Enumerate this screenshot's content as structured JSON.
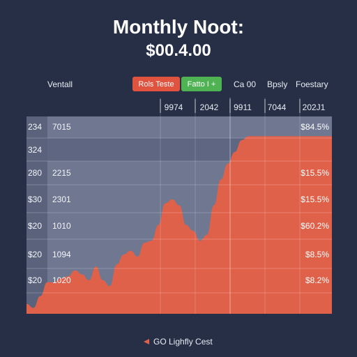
{
  "header": {
    "title": "Monthly Noot:",
    "subtitle": "$00.4.00"
  },
  "toolbar": {
    "left_label": "Ventall",
    "chip_red_label": "Rols Teste",
    "chip_green_label": "Fatto I +",
    "item_1": "Ca 00",
    "item_2": "Bpsly",
    "item_3": "Foestary"
  },
  "colors": {
    "background": "#262f45",
    "area": "#e0614a",
    "panel": "#6f7791",
    "chip_red": "#e0533f",
    "chip_green": "#4fb354"
  },
  "columns": [
    "9974",
    "2042",
    "9911",
    "7044",
    "202J1"
  ],
  "rows": [
    {
      "label": "234",
      "value": "7015",
      "pct": "$84.5%"
    },
    {
      "label": "324",
      "value": "",
      "pct": ""
    },
    {
      "label": "280",
      "value": "2215",
      "pct": "$15.5%"
    },
    {
      "label": "$30",
      "value": "2301",
      "pct": "$15.5%"
    },
    {
      "label": "$20",
      "value": "1010",
      "pct": "$60.2%"
    },
    {
      "label": "$20",
      "value": "1094",
      "pct": "$8.5%"
    },
    {
      "label": "$20",
      "value": "1020",
      "pct": "$8.2%"
    }
  ],
  "legend": {
    "label": "GO Lighfly Cest",
    "icon": "arrow-marker-icon"
  },
  "chart_data": {
    "type": "area",
    "x": [
      0,
      1,
      2,
      3,
      4,
      5,
      6,
      7,
      8,
      9,
      10,
      11,
      12,
      13,
      14,
      15,
      16,
      17,
      18,
      19,
      20,
      21,
      22,
      23,
      24,
      25,
      26,
      27,
      28,
      29,
      30,
      31,
      32,
      33,
      34,
      35,
      36,
      37,
      38,
      39,
      40,
      41,
      42,
      43,
      44
    ],
    "values": [
      5,
      3,
      9,
      16,
      16,
      18,
      19,
      22,
      20,
      17,
      24,
      17,
      14,
      25,
      30,
      32,
      29,
      36,
      37,
      45,
      56,
      58,
      55,
      45,
      42,
      37,
      40,
      55,
      68,
      76,
      82,
      88,
      90,
      90,
      90,
      90,
      90,
      90,
      90,
      90,
      90,
      90,
      90,
      90,
      90
    ],
    "ylim": [
      0,
      100
    ],
    "xlim": [
      0,
      44
    ],
    "grid": true,
    "title": "Monthly Noot:",
    "subtitle": "$00.4.00",
    "legend": "GO Lighfly Cest",
    "legend_position": "bottom"
  }
}
